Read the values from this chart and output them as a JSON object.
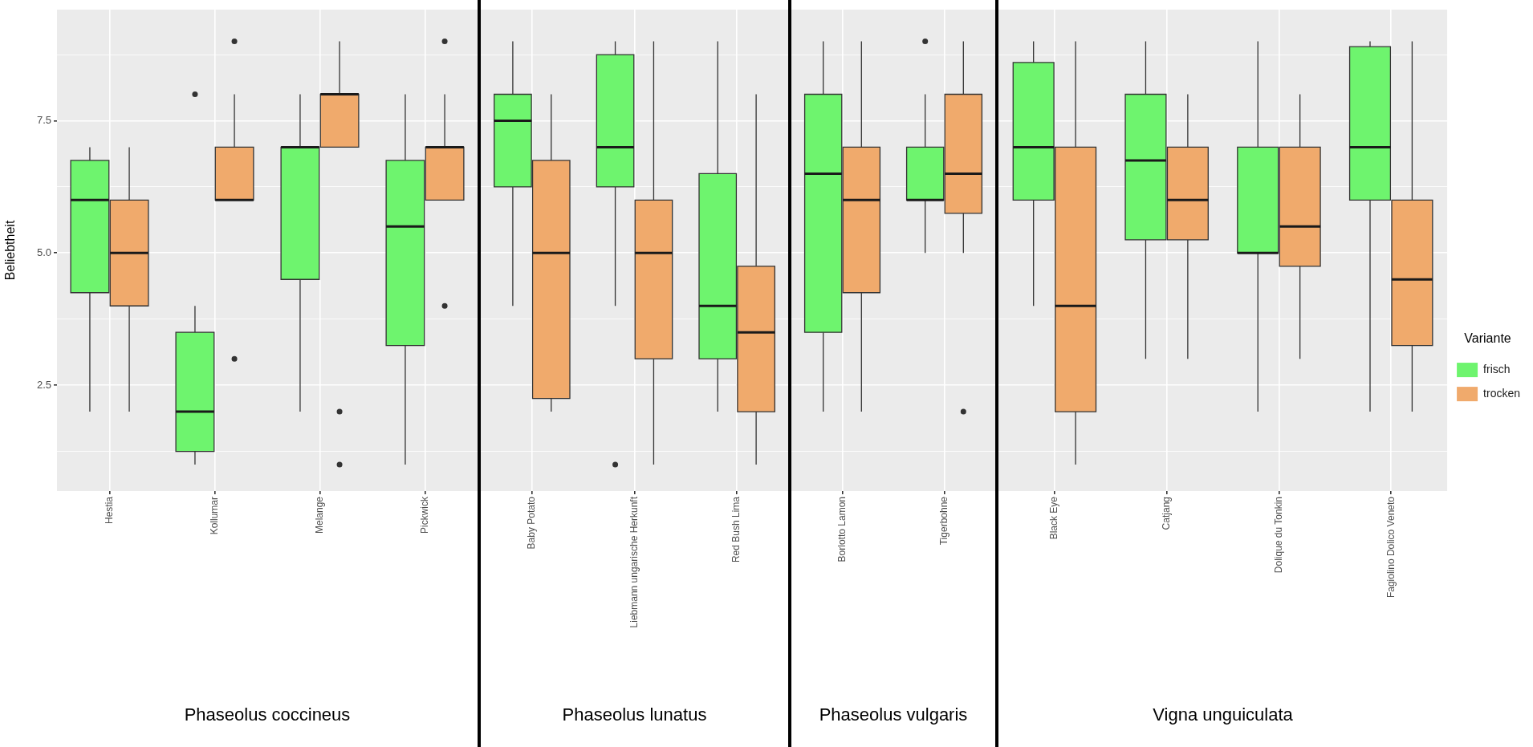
{
  "chart_data": [
    {
      "type": "box",
      "xlabel": "Phaseolus coccineus",
      "ylabel": "Beliebtheit",
      "categories": [
        "Hestia",
        "Kollumar",
        "Melange",
        "Pickwick"
      ],
      "series": [
        {
          "color": "#6ef46e",
          "boxes": [
            {
              "low": 2,
              "q1": 4.25,
              "median": 6,
              "q3": 6.75,
              "high": 7
            },
            {
              "low": 1,
              "q1": 1.25,
              "median": 2,
              "q3": 3.5,
              "high": 4,
              "outliers": [
                8
              ]
            },
            {
              "low": 2,
              "q1": 4.5,
              "median": 7,
              "q3": 7,
              "high": 8
            },
            {
              "low": 1,
              "q1": 3.25,
              "median": 5.5,
              "q3": 6.75,
              "high": 8
            }
          ]
        },
        {
          "color": "#f0aa6c",
          "boxes": [
            {
              "low": 2,
              "q1": 4,
              "median": 5,
              "q3": 6,
              "high": 7
            },
            {
              "low": 6,
              "q1": 6,
              "median": 6,
              "q3": 7,
              "high": 8,
              "outliers": [
                9,
                3
              ]
            },
            {
              "low": 7,
              "q1": 7,
              "median": 8,
              "q3": 8,
              "high": 9,
              "outliers": [
                2,
                1
              ]
            },
            {
              "low": 6,
              "q1": 6,
              "median": 7,
              "q3": 7,
              "high": 8,
              "outliers": [
                9,
                4
              ]
            }
          ]
        }
      ],
      "ylim": [
        0.5,
        9.6
      ],
      "yticks": [
        {
          "value": 1.25,
          "label": null
        },
        2.5,
        {
          "value": 3.75,
          "label": null
        },
        {
          "value": 5,
          "label": "5.0"
        },
        {
          "value": 6.25,
          "label": null
        },
        7.5,
        {
          "value": 8.75,
          "label": null
        }
      ],
      "grid": true
    },
    {
      "type": "box",
      "xlabel": "Phaseolus lunatus",
      "categories": [
        "Baby Potato",
        "Liebmann ungarische Herkunft",
        "Red Bush Lima"
      ],
      "series": [
        {
          "color": "#6ef46e",
          "boxes": [
            {
              "low": 4,
              "q1": 6.25,
              "median": 7.5,
              "q3": 8,
              "high": 9
            },
            {
              "low": 4,
              "q1": 6.25,
              "median": 7,
              "q3": 8.75,
              "high": 9,
              "outliers": [
                1
              ]
            },
            {
              "low": 2,
              "q1": 3,
              "median": 4,
              "q3": 6.5,
              "high": 9
            }
          ]
        },
        {
          "color": "#f0aa6c",
          "boxes": [
            {
              "low": 2,
              "q1": 2.25,
              "median": 5,
              "q3": 6.75,
              "high": 8
            },
            {
              "low": 1,
              "q1": 3,
              "median": 5,
              "q3": 6,
              "high": 9
            },
            {
              "low": 1,
              "q1": 2,
              "median": 3.5,
              "q3": 4.75,
              "high": 8
            }
          ]
        }
      ],
      "ylim": [
        0.5,
        9.6
      ],
      "yticks": [
        {
          "value": 1.25,
          "label": null
        },
        2.5,
        {
          "value": 3.75,
          "label": null
        },
        5,
        {
          "value": 6.25,
          "label": null
        },
        7.5,
        {
          "value": 8.75,
          "label": null
        }
      ],
      "grid": true,
      "tick_labels": "x"
    },
    {
      "type": "box",
      "xlabel": "Phaseolus vulgaris",
      "categories": [
        "Borlotto Lamon",
        "Tigerbohne"
      ],
      "series": [
        {
          "color": "#6ef46e",
          "boxes": [
            {
              "low": 2,
              "q1": 3.5,
              "median": 6.5,
              "q3": 8,
              "high": 9
            },
            {
              "low": 5,
              "q1": 6,
              "median": 6,
              "q3": 7,
              "high": 8,
              "outliers": [
                9
              ]
            }
          ]
        },
        {
          "color": "#f0aa6c",
          "boxes": [
            {
              "low": 2,
              "q1": 4.25,
              "median": 6,
              "q3": 7,
              "high": 9
            },
            {
              "low": 5,
              "q1": 5.75,
              "median": 6.5,
              "q3": 8,
              "high": 9,
              "outliers": [
                2
              ]
            }
          ]
        }
      ],
      "ylim": [
        0.5,
        9.6
      ],
      "yticks": [
        {
          "value": 1.25,
          "label": null
        },
        2.5,
        {
          "value": 3.75,
          "label": null
        },
        5,
        {
          "value": 6.25,
          "label": null
        },
        7.5,
        {
          "value": 8.75,
          "label": null
        }
      ],
      "grid": true,
      "tick_labels": "x"
    },
    {
      "type": "box",
      "xlabel": "Vigna unguiculata",
      "legend": "right",
      "legend_title": "Variante",
      "categories": [
        "Black Eye",
        "Catjang",
        "Dolique du Tonkin",
        "Fagiolino Dolico Veneto"
      ],
      "series": [
        {
          "name": "frisch",
          "color": "#6ef46e",
          "boxes": [
            {
              "low": 4,
              "q1": 6,
              "median": 7,
              "q3": 8.6,
              "high": 9
            },
            {
              "low": 3,
              "q1": 5.25,
              "median": 6.75,
              "q3": 8,
              "high": 9
            },
            {
              "low": 2,
              "q1": 5,
              "median": 5,
              "q3": 7,
              "high": 9
            },
            {
              "low": 2,
              "q1": 6,
              "median": 7,
              "q3": 8.9,
              "high": 9
            }
          ]
        },
        {
          "name": "trocken",
          "color": "#f0aa6c",
          "boxes": [
            {
              "low": 1,
              "q1": 2,
              "median": 4,
              "q3": 7,
              "high": 9
            },
            {
              "low": 3,
              "q1": 5.25,
              "median": 6,
              "q3": 7,
              "high": 8
            },
            {
              "low": 3,
              "q1": 4.75,
              "median": 5.5,
              "q3": 7,
              "high": 8
            },
            {
              "low": 2,
              "q1": 3.25,
              "median": 4.5,
              "q3": 6,
              "high": 9
            }
          ]
        }
      ],
      "ylim": [
        0.5,
        9.6
      ],
      "yticks": [
        {
          "value": 1.25,
          "label": null
        },
        2.5,
        {
          "value": 3.75,
          "label": null
        },
        5,
        {
          "value": 6.25,
          "label": null
        },
        7.5,
        {
          "value": 8.75,
          "label": null
        }
      ],
      "grid": true,
      "tick_labels": "x"
    }
  ]
}
